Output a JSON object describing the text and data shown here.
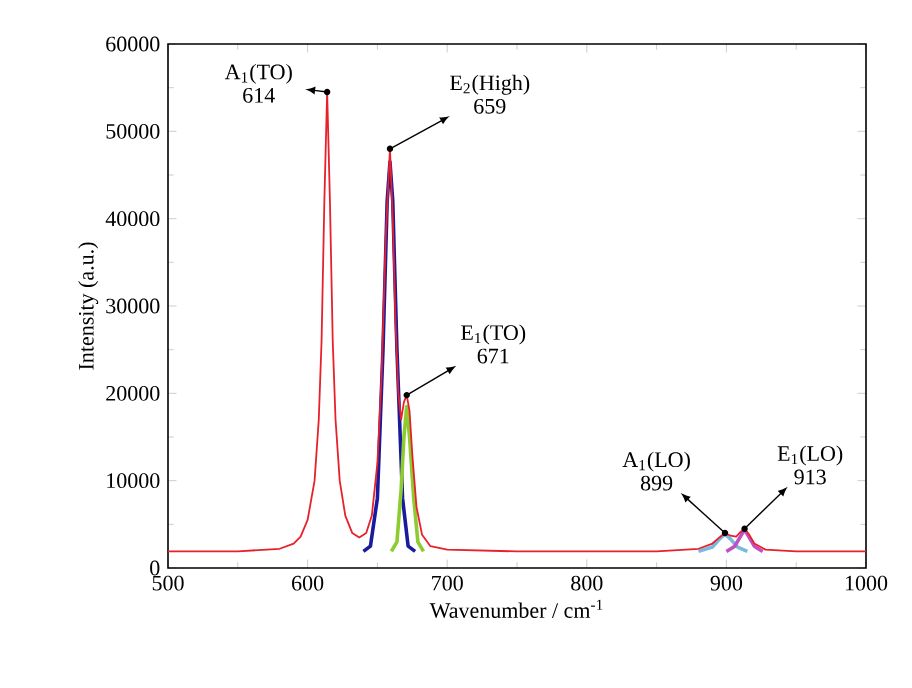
{
  "chart_data": {
    "type": "line",
    "xlabel": "Wavenumber / cm$^{-1}$",
    "ylabel": "Intensity (a.u.)",
    "xlim": [
      500,
      1000
    ],
    "xticks": [
      500,
      600,
      700,
      800,
      900,
      1000
    ],
    "ylim": [
      0,
      60000
    ],
    "yticks": [
      0,
      10000,
      20000,
      30000,
      40000,
      50000,
      60000
    ],
    "grid": false,
    "series": [
      {
        "color": "#1a1a9c",
        "x": [
          640,
          645,
          650,
          654,
          657,
          659,
          661,
          664,
          668,
          672,
          677
        ],
        "values": [
          1900,
          2500,
          8000,
          25000,
          42000,
          46500,
          42000,
          25000,
          8000,
          2500,
          1900
        ]
      },
      {
        "color": "#8ccc30",
        "x": [
          660,
          664,
          667,
          669,
          671,
          673,
          676,
          679,
          683
        ],
        "values": [
          1900,
          3000,
          9000,
          15000,
          18500,
          15000,
          8000,
          3000,
          1900
        ]
      },
      {
        "color": "#7ab8e0",
        "x": [
          880,
          890,
          895,
          899,
          903,
          908,
          915
        ],
        "values": [
          1900,
          2400,
          3300,
          3900,
          3300,
          2400,
          1900
        ]
      },
      {
        "color": "#c050c0",
        "x": [
          900,
          906,
          910,
          913,
          916,
          920,
          926
        ],
        "values": [
          1900,
          2500,
          3600,
          4400,
          3600,
          2500,
          1900
        ]
      },
      {
        "color": "#e8202a",
        "x": [
          500,
          550,
          580,
          590,
          595,
          600,
          605,
          608,
          610,
          612,
          614,
          616,
          618,
          620,
          623,
          627,
          632,
          637,
          642,
          646,
          650,
          653,
          656,
          659,
          661,
          663,
          665,
          667,
          669,
          671,
          673,
          675,
          678,
          682,
          688,
          700,
          750,
          850,
          880,
          890,
          895,
          899,
          903,
          907,
          910,
          913,
          916,
          920,
          928,
          950,
          1000
        ],
        "values": [
          1900,
          1900,
          2200,
          2800,
          3600,
          5500,
          10000,
          17000,
          26000,
          42000,
          54500,
          42000,
          26000,
          17000,
          10000,
          6000,
          4000,
          3500,
          4000,
          6000,
          12000,
          22000,
          38000,
          48000,
          40000,
          28000,
          20000,
          17000,
          19000,
          19800,
          18000,
          13000,
          7000,
          3800,
          2500,
          2100,
          1900,
          1900,
          2200,
          2800,
          3500,
          4000,
          3700,
          3600,
          4100,
          4500,
          3900,
          2800,
          2100,
          1900,
          1900
        ]
      }
    ],
    "annotations": [
      {
        "text": "A$_{1}$(TO) 614",
        "x": 614,
        "y": 54500
      },
      {
        "text": "E$_{2}$(High) 659",
        "x": 659,
        "y": 48000
      },
      {
        "text": "E$_{1}$(TO) 671",
        "x": 671,
        "y": 19800
      },
      {
        "text": "A$_{1}$(LO) 899",
        "x": 899,
        "y": 4000
      },
      {
        "text": "E$_{1}$(LO) 913",
        "x": 913,
        "y": 4500
      }
    ]
  }
}
